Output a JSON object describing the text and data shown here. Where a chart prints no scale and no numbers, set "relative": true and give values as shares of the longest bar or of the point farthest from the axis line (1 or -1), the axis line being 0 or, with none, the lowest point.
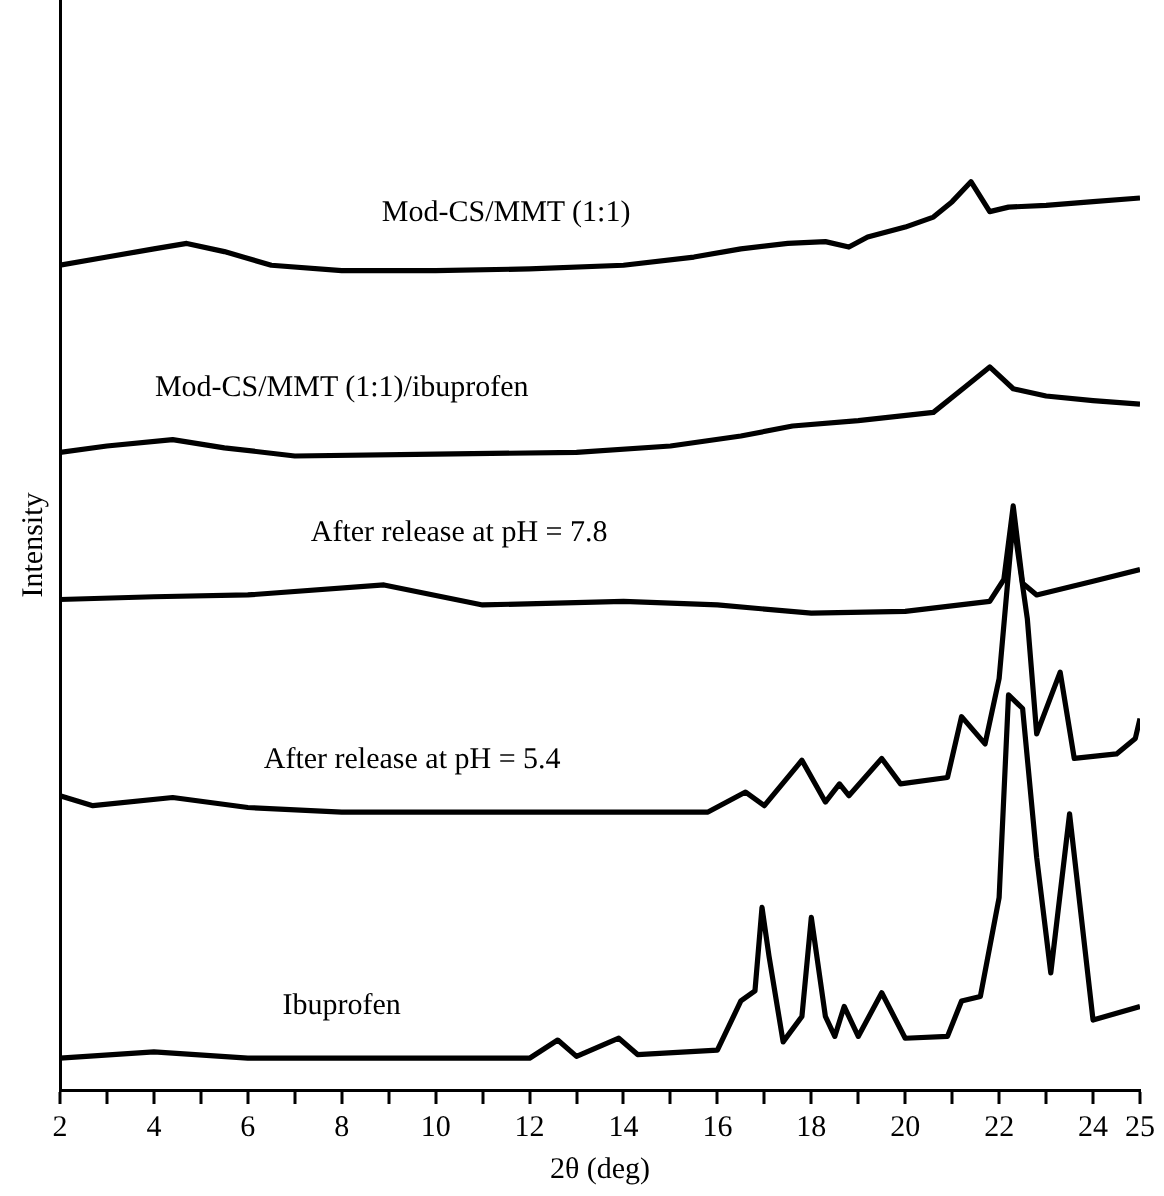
{
  "chart_data": {
    "type": "line",
    "relative": true,
    "xlabel": "2θ (deg)",
    "ylabel": "Intensity",
    "xlim": [
      2,
      25
    ],
    "xticks": [
      2,
      {
        "value": 3,
        "label": null
      },
      4,
      {
        "value": 5,
        "label": null
      },
      6,
      {
        "value": 7,
        "label": null
      },
      8,
      {
        "value": 9,
        "label": null
      },
      10,
      {
        "value": 11,
        "label": null
      },
      12,
      {
        "value": 13,
        "label": null
      },
      14,
      {
        "value": 15,
        "label": null
      },
      16,
      {
        "value": 17,
        "label": null
      },
      18,
      {
        "value": 19,
        "label": null
      },
      20,
      {
        "value": 21,
        "label": null
      },
      22,
      {
        "value": 23,
        "label": null
      },
      24,
      25
    ],
    "grid": false,
    "legend": false,
    "marker": "none",
    "line_style": "solid",
    "series": [
      {
        "name": "Mod-CS/MMT (1:1)",
        "color": "#000000",
        "x": [
          2,
          3,
          4,
          4.7,
          5.5,
          6.5,
          8,
          10,
          12,
          14,
          15.5,
          16.5,
          17.5,
          18.3,
          18.8,
          19.2,
          20,
          20.6,
          21,
          21.4,
          21.8,
          22.2,
          23,
          24,
          25
        ],
        "values": [
          0.908,
          0.917,
          0.926,
          0.932,
          0.923,
          0.908,
          0.902,
          0.902,
          0.904,
          0.908,
          0.917,
          0.926,
          0.932,
          0.934,
          0.928,
          0.939,
          0.95,
          0.961,
          0.978,
          1,
          0.967,
          0.972,
          0.974,
          0.978,
          0.982
        ]
      },
      {
        "name": "Mod-CS/MMT (1:1)/ibuprofen",
        "color": "#000000",
        "x": [
          2,
          3,
          4.4,
          5.5,
          7,
          10,
          13,
          15,
          16.5,
          17.6,
          19,
          20.6,
          21.3,
          21.8,
          22.3,
          23,
          24,
          25
        ],
        "values": [
          0.702,
          0.709,
          0.716,
          0.707,
          0.698,
          0.7,
          0.702,
          0.709,
          0.72,
          0.731,
          0.737,
          0.746,
          0.775,
          0.796,
          0.772,
          0.764,
          0.759,
          0.755
        ]
      },
      {
        "name": "After release at pH = 7.8",
        "color": "#000000",
        "x": [
          2,
          4,
          6,
          8.9,
          11,
          14,
          16,
          18,
          20,
          21.8,
          22.1,
          22.3,
          22.5,
          22.8,
          24,
          25
        ],
        "values": [
          0.54,
          0.543,
          0.545,
          0.556,
          0.534,
          0.538,
          0.534,
          0.525,
          0.527,
          0.538,
          0.562,
          0.643,
          0.558,
          0.545,
          0.56,
          0.573
        ]
      },
      {
        "name": "After release at pH = 5.4",
        "color": "#000000",
        "x": [
          2,
          2.7,
          4.4,
          6,
          8,
          12,
          15.8,
          16.6,
          17,
          17.8,
          18.3,
          18.6,
          18.8,
          19.5,
          19.9,
          20.9,
          21.2,
          21.7,
          22,
          22.3,
          22.6,
          22.8,
          23.3,
          23.6,
          24.5,
          24.9,
          25
        ],
        "values": [
          0.324,
          0.313,
          0.322,
          0.311,
          0.306,
          0.306,
          0.306,
          0.328,
          0.313,
          0.363,
          0.317,
          0.337,
          0.324,
          0.365,
          0.337,
          0.344,
          0.411,
          0.381,
          0.453,
          0.628,
          0.519,
          0.392,
          0.46,
          0.365,
          0.37,
          0.387,
          0.409
        ]
      },
      {
        "name": "Ibuprofen",
        "color": "#000000",
        "x": [
          2,
          4,
          6,
          8,
          12,
          12.6,
          13,
          13.9,
          14.3,
          16,
          16.5,
          16.8,
          16.95,
          17.1,
          17.4,
          17.8,
          18,
          18.3,
          18.5,
          18.7,
          19,
          19.5,
          20,
          20.9,
          21.2,
          21.6,
          22,
          22.2,
          22.5,
          22.8,
          23.1,
          23.5,
          24,
          25
        ],
        "values": [
          0.035,
          0.042,
          0.035,
          0.035,
          0.035,
          0.055,
          0.037,
          0.057,
          0.039,
          0.044,
          0.098,
          0.109,
          0.201,
          0.147,
          0.053,
          0.081,
          0.19,
          0.081,
          0.059,
          0.092,
          0.059,
          0.107,
          0.057,
          0.059,
          0.098,
          0.103,
          0.212,
          0.435,
          0.42,
          0.256,
          0.129,
          0.304,
          0.077,
          0.092
        ]
      }
    ]
  }
}
